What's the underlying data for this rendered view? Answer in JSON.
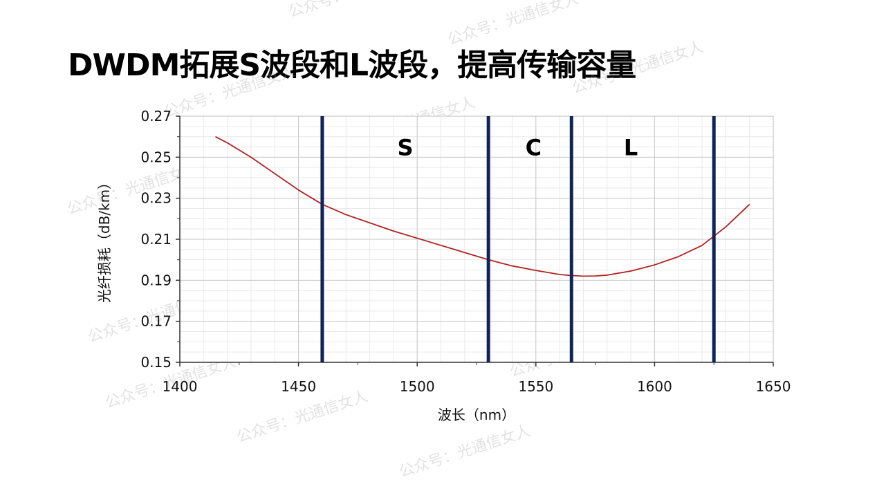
{
  "page": {
    "title": "DWDM拓展S波段和L波段，提高传输容量",
    "watermark": "公众号：光通信女人"
  },
  "chart_data": {
    "type": "line",
    "title": "",
    "xlabel": "波长（nm）",
    "ylabel": "光纤损耗（dB/km）",
    "xlim": [
      1400,
      1650
    ],
    "ylim": [
      0.15,
      0.27
    ],
    "x_ticks": [
      1400,
      1450,
      1500,
      1550,
      1600,
      1650
    ],
    "y_ticks": [
      0.15,
      0.17,
      0.19,
      0.21,
      0.23,
      0.25,
      0.27
    ],
    "y_tick_labels": [
      "0.15",
      "0.17",
      "0.19",
      "0.21",
      "0.23",
      "0.25",
      "0.27"
    ],
    "grid": true,
    "series": [
      {
        "color": "#b22222",
        "x": [
          1415,
          1420,
          1430,
          1440,
          1450,
          1460,
          1470,
          1480,
          1490,
          1500,
          1510,
          1520,
          1530,
          1540,
          1550,
          1560,
          1565,
          1570,
          1575,
          1580,
          1590,
          1600,
          1610,
          1620,
          1625,
          1630,
          1640
        ],
        "y": [
          0.26,
          0.257,
          0.25,
          0.242,
          0.234,
          0.227,
          0.222,
          0.218,
          0.214,
          0.2105,
          0.207,
          0.2035,
          0.2,
          0.197,
          0.1948,
          0.1928,
          0.1923,
          0.192,
          0.1921,
          0.1925,
          0.1945,
          0.1975,
          0.2015,
          0.207,
          0.2115,
          0.216,
          0.227
        ]
      }
    ],
    "band_boundaries": {
      "color": "#0f2557",
      "x": [
        1460,
        1530,
        1565,
        1625
      ]
    },
    "bands": [
      {
        "label": "S",
        "x": 1495,
        "y": 0.251
      },
      {
        "label": "C",
        "x": 1549,
        "y": 0.251
      },
      {
        "label": "L",
        "x": 1590,
        "y": 0.251
      }
    ]
  }
}
